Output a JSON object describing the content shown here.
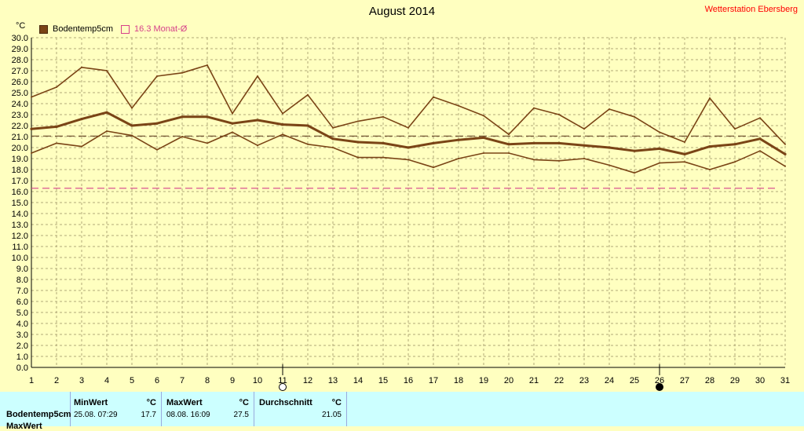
{
  "header": {
    "title": "August 2014",
    "station": "Wetterstation Ebersberg"
  },
  "legend": {
    "soil_label": "Bodentemp5cm",
    "avg_label": "16.3 Monat-Ø"
  },
  "colors": {
    "series": "#7a4416",
    "month_avg": "#d6408a",
    "overall_avg": "#6b4a2a",
    "grid": "#b0a878",
    "background": "#ffffc0",
    "stats_bg": "#ccffff"
  },
  "chart_data": {
    "type": "line",
    "title": "August 2014",
    "ylabel": "°C",
    "xlabel": "",
    "ylim": [
      0,
      30
    ],
    "xlim": [
      1,
      31
    ],
    "y_ticks": [
      "0.0",
      "1.0",
      "2.0",
      "3.0",
      "4.0",
      "5.0",
      "6.0",
      "7.0",
      "8.0",
      "9.0",
      "10.0",
      "11.0",
      "12.0",
      "13.0",
      "14.0",
      "15.0",
      "16.0",
      "17.0",
      "18.0",
      "19.0",
      "20.0",
      "21.0",
      "22.0",
      "23.0",
      "24.0",
      "25.0",
      "26.0",
      "27.0",
      "28.0",
      "29.0",
      "30.0"
    ],
    "x": [
      1,
      2,
      3,
      4,
      5,
      6,
      7,
      8,
      9,
      10,
      11,
      12,
      13,
      14,
      15,
      16,
      17,
      18,
      19,
      20,
      21,
      22,
      23,
      24,
      25,
      26,
      27,
      28,
      29,
      30,
      31
    ],
    "x_ticks": [
      "1",
      "2",
      "3",
      "4",
      "5",
      "6",
      "7",
      "8",
      "9",
      "10",
      "11",
      "12",
      "13",
      "14",
      "15",
      "16",
      "17",
      "18",
      "19",
      "20",
      "21",
      "22",
      "23",
      "24",
      "25",
      "26",
      "27",
      "28",
      "29",
      "30",
      "31"
    ],
    "series": [
      {
        "name": "Bodentemp5cm",
        "role": "max",
        "values": [
          24.6,
          25.5,
          27.3,
          27.0,
          23.6,
          26.5,
          26.8,
          27.5,
          23.1,
          26.5,
          23.1,
          24.8,
          21.8,
          22.4,
          22.8,
          21.8,
          24.6,
          23.8,
          22.9,
          21.2,
          23.6,
          23.0,
          21.7,
          23.5,
          22.8,
          21.4,
          20.5,
          24.5,
          21.7,
          22.7,
          20.3
        ]
      },
      {
        "name": "",
        "role": "mean",
        "values": [
          21.7,
          21.9,
          22.6,
          23.2,
          22.0,
          22.2,
          22.8,
          22.8,
          22.2,
          22.5,
          22.1,
          22.0,
          20.8,
          20.5,
          20.4,
          20.0,
          20.4,
          20.7,
          20.9,
          20.3,
          20.4,
          20.4,
          20.2,
          20.0,
          19.7,
          19.9,
          19.4,
          20.1,
          20.3,
          20.8,
          19.4
        ]
      },
      {
        "name": "",
        "role": "min",
        "values": [
          19.5,
          20.4,
          20.1,
          21.5,
          21.1,
          19.8,
          21.0,
          20.4,
          21.4,
          20.2,
          21.2,
          20.3,
          20.0,
          19.1,
          19.1,
          18.9,
          18.2,
          19.0,
          19.5,
          19.5,
          18.9,
          18.8,
          19.0,
          18.4,
          17.7,
          18.6,
          18.7,
          18.0,
          18.7,
          19.7,
          18.3
        ]
      }
    ],
    "reference_lines": [
      {
        "value": 21.05,
        "role": "overall-average"
      },
      {
        "value": 16.3,
        "role": "month-average"
      }
    ],
    "moon_markers": [
      {
        "x": 11,
        "phase": "full"
      },
      {
        "x": 26,
        "phase": "new"
      }
    ]
  },
  "stats": {
    "row_label": "Bodentemp5cm",
    "row_label2": "MaxWert",
    "min": {
      "header": "MinWert",
      "unit": "°C",
      "time": "25.08.  07:29",
      "value": "17.7"
    },
    "max": {
      "header": "MaxWert",
      "unit": "°C",
      "time": "08.08.  16:09",
      "value": "27.5"
    },
    "avg": {
      "header": "Durchschnitt",
      "unit": "°C",
      "value": "21.05"
    }
  }
}
